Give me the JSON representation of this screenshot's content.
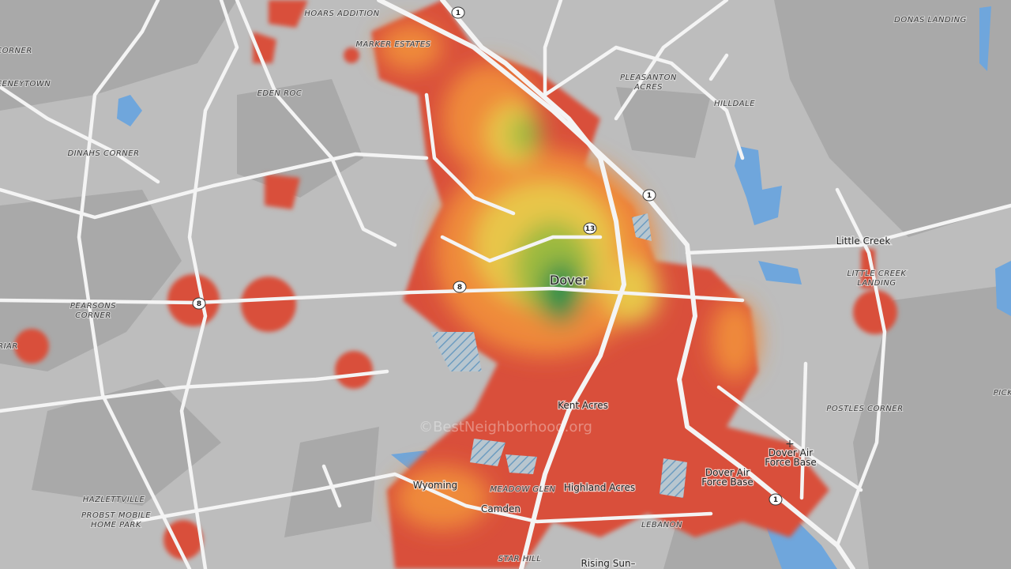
{
  "map": {
    "places": [
      {
        "lines": [
          "HOARS ADDITION"
        ]
      },
      {
        "lines": [
          "MARKER ESTATES"
        ]
      },
      {
        "lines": [
          "CORNER"
        ]
      },
      {
        "lines": [
          "EENEYTOWN"
        ]
      },
      {
        "lines": [
          "EDEN ROC"
        ]
      },
      {
        "lines": [
          "PLEASANTON",
          "ACRES"
        ]
      },
      {
        "lines": [
          "HILLDALE"
        ]
      },
      {
        "lines": [
          "DONAS LANDING"
        ]
      },
      {
        "lines": [
          "DINAHS CORNER"
        ]
      },
      {
        "lines": [
          "LITTLE CREEK",
          "LANDING"
        ]
      },
      {
        "lines": [
          "PEARSONS",
          "CORNER"
        ]
      },
      {
        "lines": [
          "RIAR"
        ]
      },
      {
        "lines": [
          "POSTLES CORNER"
        ]
      },
      {
        "lines": [
          "PICK"
        ]
      },
      {
        "lines": [
          "MEADOW GLEN"
        ]
      },
      {
        "lines": [
          "HAZLETTVILLE"
        ]
      },
      {
        "lines": [
          "PROBST MOBILE",
          "HOME PARK"
        ]
      },
      {
        "lines": [
          "LEBANON"
        ]
      },
      {
        "lines": [
          "STAR HILL"
        ]
      }
    ],
    "towns": [
      {
        "lines": [
          "Dover"
        ]
      },
      {
        "lines": [
          "Little Creek"
        ]
      },
      {
        "lines": [
          "Kent Acres"
        ]
      },
      {
        "lines": [
          "Dover Air",
          "Force Base"
        ]
      },
      {
        "lines": [
          "Dover Air",
          "Force Base"
        ]
      },
      {
        "lines": [
          "Wyoming"
        ]
      },
      {
        "lines": [
          "Highland Acres"
        ]
      },
      {
        "lines": [
          "Camden"
        ]
      },
      {
        "lines": [
          "Rising Sun–"
        ]
      }
    ],
    "shields": [
      "1",
      "1",
      "13",
      "8",
      "8",
      "1"
    ],
    "watermark": "©BestNeighborhood.org"
  }
}
